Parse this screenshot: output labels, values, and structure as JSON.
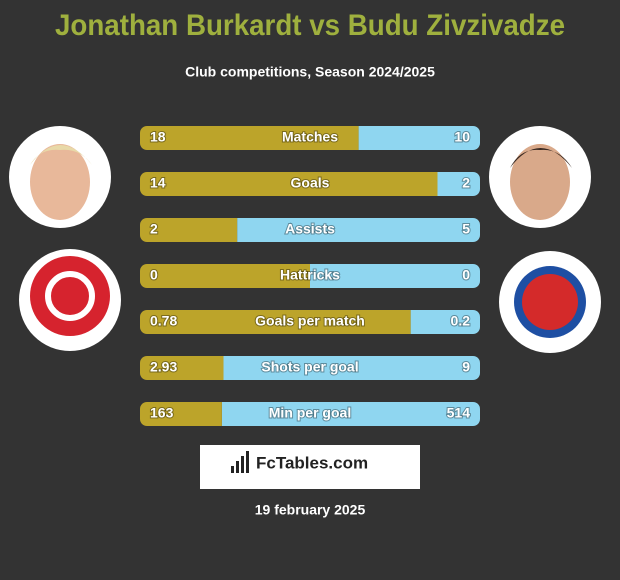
{
  "title": "Jonathan Burkardt vs Budu Zivzivadze",
  "chart_data": {
    "type": "bar",
    "subtitle": "Club competitions, Season 2024/2025",
    "categories": [
      "Matches",
      "Goals",
      "Assists",
      "Hattricks",
      "Goals per match",
      "Shots per goal",
      "Min per goal"
    ],
    "series": [
      {
        "color": "#bca42a",
        "values": [
          18,
          14,
          2,
          0,
          0.78,
          2.93,
          163
        ]
      },
      {
        "color": "#8fd6f0",
        "values": [
          10,
          2,
          5,
          0,
          0.2,
          9,
          514
        ]
      }
    ]
  },
  "logo": "FcTables.com",
  "date": "19 february 2025"
}
